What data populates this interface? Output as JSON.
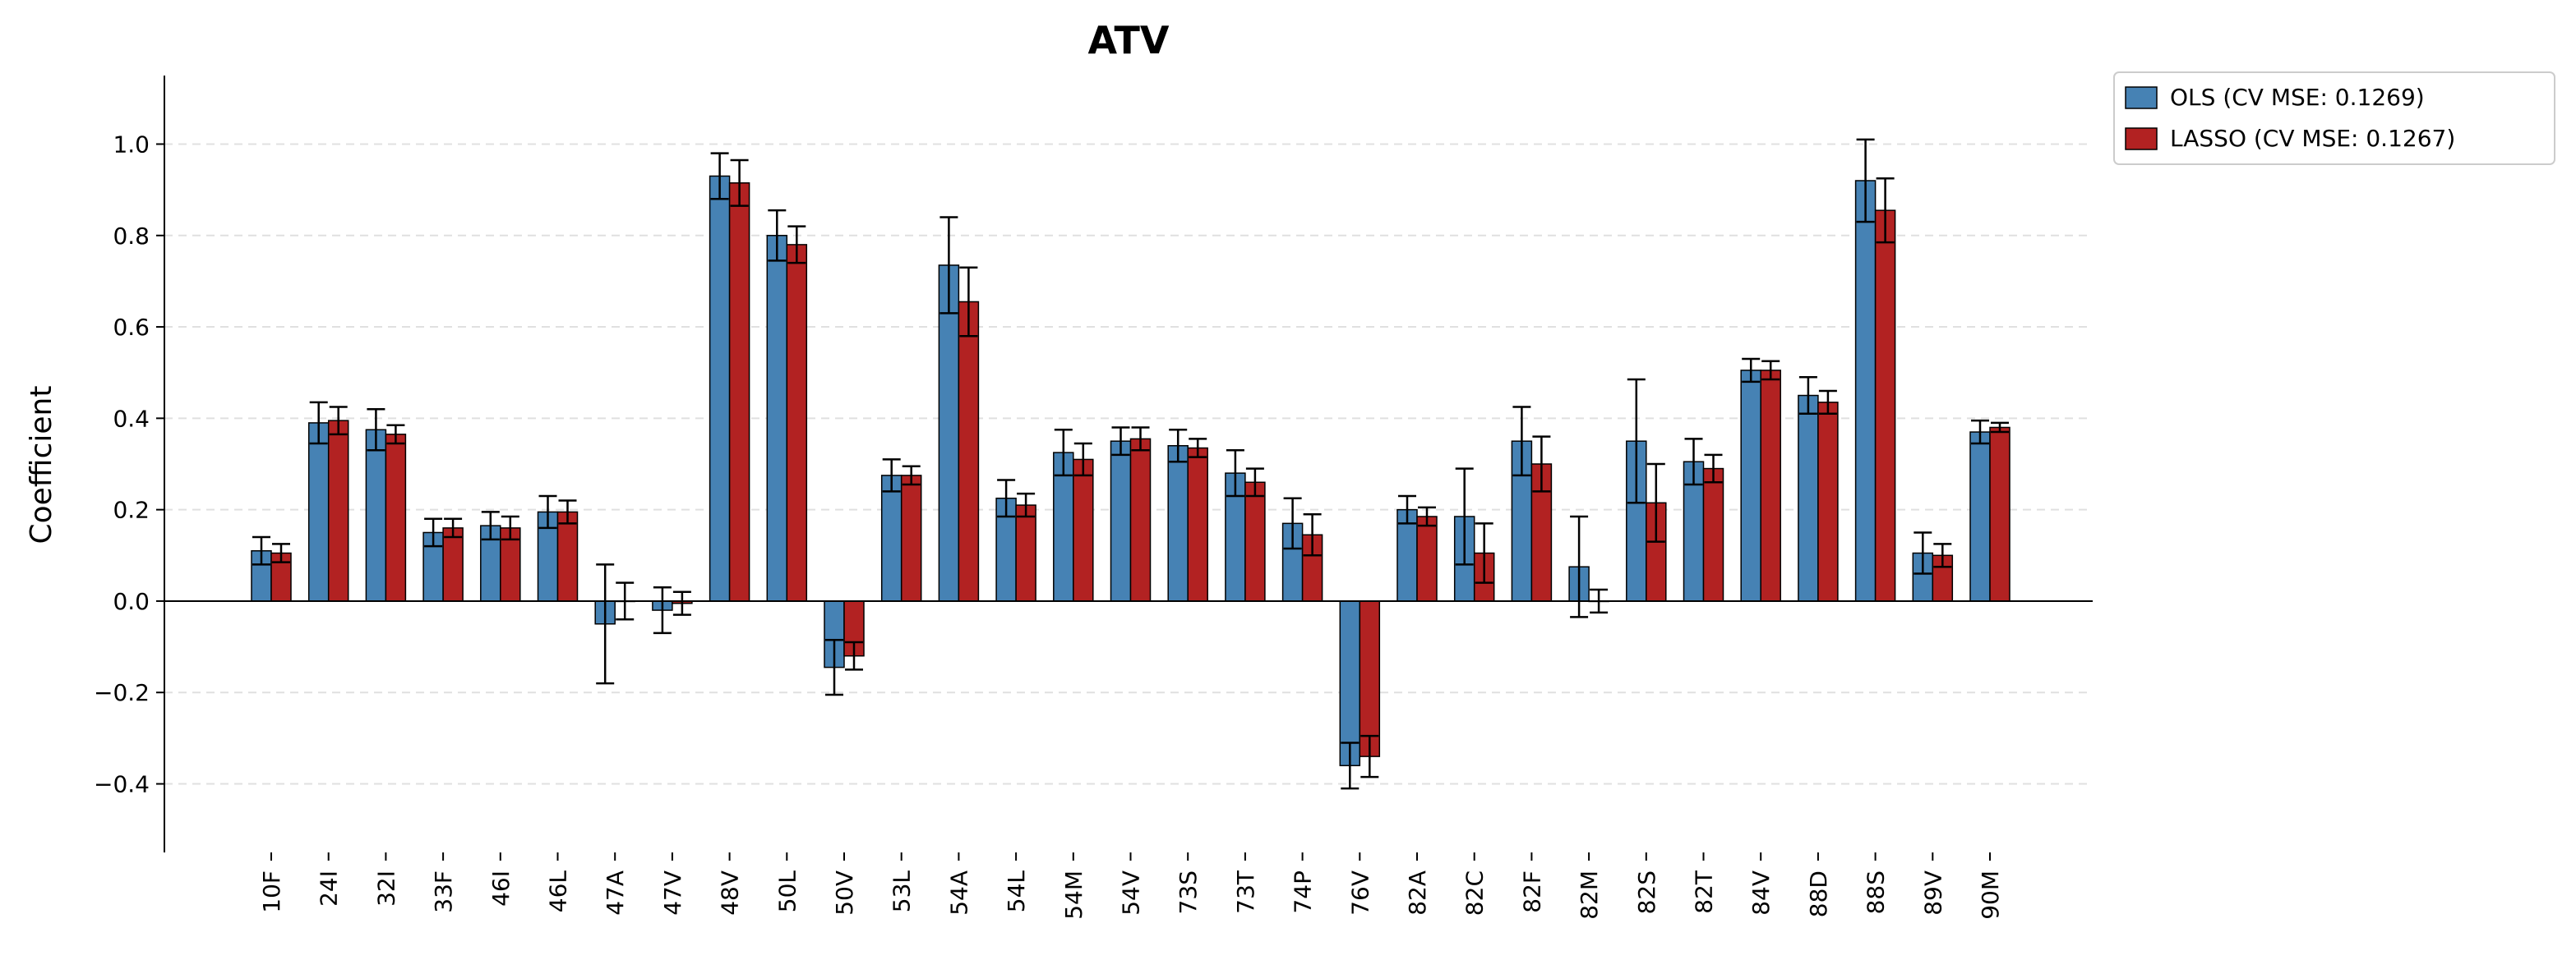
{
  "chart_data": {
    "type": "bar",
    "title": "ATV",
    "xlabel": "",
    "ylabel": "Coefficient",
    "ylim": [
      -0.55,
      1.15
    ],
    "yticks": [
      -0.4,
      -0.2,
      0.0,
      0.2,
      0.4,
      0.6,
      0.8,
      1.0
    ],
    "ytick_labels": [
      "−0.4",
      "−0.2",
      "0.0",
      "0.2",
      "0.4",
      "0.6",
      "0.8",
      "1.0"
    ],
    "grid": "y-dashed",
    "legend_position": "outside-top-right",
    "categories": [
      "10F",
      "24I",
      "32I",
      "33F",
      "46I",
      "46L",
      "47A",
      "47V",
      "48V",
      "50L",
      "50V",
      "53L",
      "54A",
      "54L",
      "54M",
      "54V",
      "73S",
      "73T",
      "74P",
      "76V",
      "82A",
      "82C",
      "82F",
      "82M",
      "82S",
      "82T",
      "84V",
      "88D",
      "88S",
      "89V",
      "90M"
    ],
    "series": [
      {
        "name": "OLS (CV MSE: 0.1269)",
        "color": "#4682b4",
        "values": [
          0.11,
          0.39,
          0.375,
          0.15,
          0.165,
          0.195,
          -0.05,
          -0.02,
          0.93,
          0.8,
          -0.145,
          0.275,
          0.735,
          0.225,
          0.325,
          0.35,
          0.34,
          0.28,
          0.17,
          -0.36,
          0.2,
          0.185,
          0.35,
          0.075,
          0.35,
          0.305,
          0.505,
          0.45,
          0.92,
          0.105,
          0.37
        ],
        "errors": [
          0.03,
          0.045,
          0.045,
          0.03,
          0.03,
          0.035,
          0.13,
          0.05,
          0.05,
          0.055,
          0.06,
          0.035,
          0.105,
          0.04,
          0.05,
          0.03,
          0.035,
          0.05,
          0.055,
          0.05,
          0.03,
          0.105,
          0.075,
          0.11,
          0.135,
          0.05,
          0.025,
          0.04,
          0.09,
          0.045,
          0.025
        ]
      },
      {
        "name": "LASSO (CV MSE: 0.1267)",
        "color": "#b22222",
        "values": [
          0.105,
          0.395,
          0.365,
          0.16,
          0.16,
          0.195,
          0.0,
          -0.005,
          0.915,
          0.78,
          -0.12,
          0.275,
          0.655,
          0.21,
          0.31,
          0.355,
          0.335,
          0.26,
          0.145,
          -0.34,
          0.185,
          0.105,
          0.3,
          0.0,
          0.215,
          0.29,
          0.505,
          0.435,
          0.855,
          0.1,
          0.38
        ],
        "errors": [
          0.02,
          0.03,
          0.02,
          0.02,
          0.025,
          0.025,
          0.04,
          0.025,
          0.05,
          0.04,
          0.03,
          0.02,
          0.075,
          0.025,
          0.035,
          0.025,
          0.02,
          0.03,
          0.045,
          0.045,
          0.02,
          0.065,
          0.06,
          0.025,
          0.085,
          0.03,
          0.02,
          0.025,
          0.07,
          0.025,
          0.01
        ]
      }
    ]
  }
}
